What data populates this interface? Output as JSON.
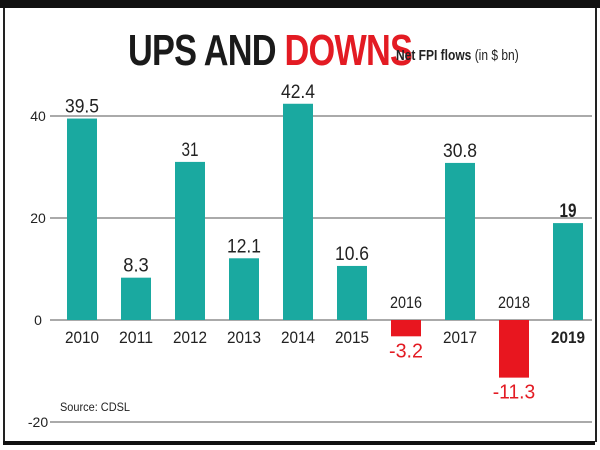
{
  "chart_data": {
    "type": "bar",
    "title_part1": "UPS AND",
    "title_part2": "DOWNS",
    "subtitle_bold": "Net FPI flows",
    "subtitle_unit": "(in $ bn)",
    "source": "Source: CDSL",
    "categories": [
      "2010",
      "2011",
      "2012",
      "2013",
      "2014",
      "2015",
      "2016",
      "2017",
      "2018",
      "2019"
    ],
    "values": [
      39.5,
      8.3,
      31,
      12.1,
      42.4,
      10.6,
      -3.2,
      30.8,
      -11.3,
      19
    ],
    "value_labels": [
      "39.5",
      "8.3",
      "31",
      "12.1",
      "42.4",
      "10.6",
      "-3.2",
      "30.8",
      "-11.3",
      "19"
    ],
    "yticks": [
      40,
      20,
      0,
      -20
    ],
    "ylim": [
      -20,
      40
    ],
    "grid": true,
    "colors": {
      "positive": "#1aa9a0",
      "negative": "#e8161f",
      "title_accent": "#e31b23"
    }
  }
}
